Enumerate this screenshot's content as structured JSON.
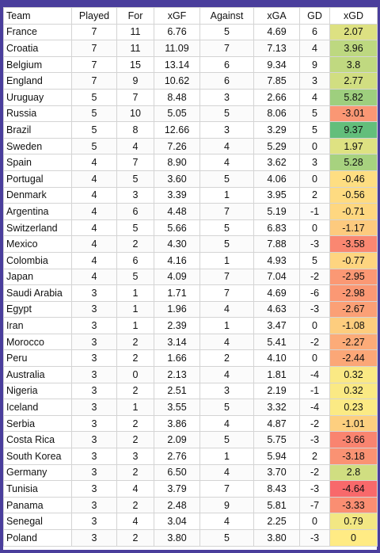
{
  "chart_data": {
    "type": "table",
    "columns": [
      "Team",
      "Played",
      "For",
      "xGF",
      "Against",
      "xGA",
      "GD",
      "xGD"
    ],
    "rows": [
      [
        "France",
        7,
        11,
        "6.76",
        5,
        "4.69",
        6,
        "2.07"
      ],
      [
        "Croatia",
        7,
        11,
        "11.09",
        7,
        "7.13",
        4,
        "3.96"
      ],
      [
        "Belgium",
        7,
        15,
        "13.14",
        6,
        "9.34",
        9,
        "3.8"
      ],
      [
        "England",
        7,
        9,
        "10.62",
        6,
        "7.85",
        3,
        "2.77"
      ],
      [
        "Uruguay",
        5,
        7,
        "8.48",
        3,
        "2.66",
        4,
        "5.82"
      ],
      [
        "Russia",
        5,
        10,
        "5.05",
        5,
        "8.06",
        5,
        "-3.01"
      ],
      [
        "Brazil",
        5,
        8,
        "12.66",
        3,
        "3.29",
        5,
        "9.37"
      ],
      [
        "Sweden",
        5,
        4,
        "7.26",
        4,
        "5.29",
        0,
        "1.97"
      ],
      [
        "Spain",
        4,
        7,
        "8.90",
        4,
        "3.62",
        3,
        "5.28"
      ],
      [
        "Portugal",
        4,
        5,
        "3.60",
        5,
        "4.06",
        0,
        "-0.46"
      ],
      [
        "Denmark",
        4,
        3,
        "3.39",
        1,
        "3.95",
        2,
        "-0.56"
      ],
      [
        "Argentina",
        4,
        6,
        "4.48",
        7,
        "5.19",
        -1,
        "-0.71"
      ],
      [
        "Switzerland",
        4,
        5,
        "5.66",
        5,
        "6.83",
        0,
        "-1.17"
      ],
      [
        "Mexico",
        4,
        2,
        "4.30",
        5,
        "7.88",
        -3,
        "-3.58"
      ],
      [
        "Colombia",
        4,
        6,
        "4.16",
        1,
        "4.93",
        5,
        "-0.77"
      ],
      [
        "Japan",
        4,
        5,
        "4.09",
        7,
        "7.04",
        -2,
        "-2.95"
      ],
      [
        "Saudi Arabia",
        3,
        1,
        "1.71",
        7,
        "4.69",
        -6,
        "-2.98"
      ],
      [
        "Egypt",
        3,
        1,
        "1.96",
        4,
        "4.63",
        -3,
        "-2.67"
      ],
      [
        "Iran",
        3,
        1,
        "2.39",
        1,
        "3.47",
        0,
        "-1.08"
      ],
      [
        "Morocco",
        3,
        2,
        "3.14",
        4,
        "5.41",
        -2,
        "-2.27"
      ],
      [
        "Peru",
        3,
        2,
        "1.66",
        2,
        "4.10",
        0,
        "-2.44"
      ],
      [
        "Australia",
        3,
        0,
        "2.13",
        4,
        "1.81",
        -4,
        "0.32"
      ],
      [
        "Nigeria",
        3,
        2,
        "2.51",
        3,
        "2.19",
        -1,
        "0.32"
      ],
      [
        "Iceland",
        3,
        1,
        "3.55",
        5,
        "3.32",
        -4,
        "0.23"
      ],
      [
        "Serbia",
        3,
        2,
        "3.86",
        4,
        "4.87",
        -2,
        "-1.01"
      ],
      [
        "Costa Rica",
        3,
        2,
        "2.09",
        5,
        "5.75",
        -3,
        "-3.66"
      ],
      [
        "South Korea",
        3,
        3,
        "2.76",
        1,
        "5.94",
        2,
        "-3.18"
      ],
      [
        "Germany",
        3,
        2,
        "6.50",
        4,
        "3.70",
        -2,
        "2.8"
      ],
      [
        "Tunisia",
        3,
        4,
        "3.79",
        7,
        "8.43",
        -3,
        "-4.64"
      ],
      [
        "Panama",
        3,
        2,
        "2.48",
        9,
        "5.81",
        -7,
        "-3.33"
      ],
      [
        "Senegal",
        3,
        4,
        "3.04",
        4,
        "2.25",
        0,
        "0.79"
      ],
      [
        "Poland",
        3,
        2,
        "3.80",
        5,
        "3.80",
        -3,
        "0"
      ]
    ],
    "colors": {
      "xgd_low": "#f8696b",
      "xgd_mid": "#ffeb84",
      "xgd_high": "#63be7b"
    }
  }
}
